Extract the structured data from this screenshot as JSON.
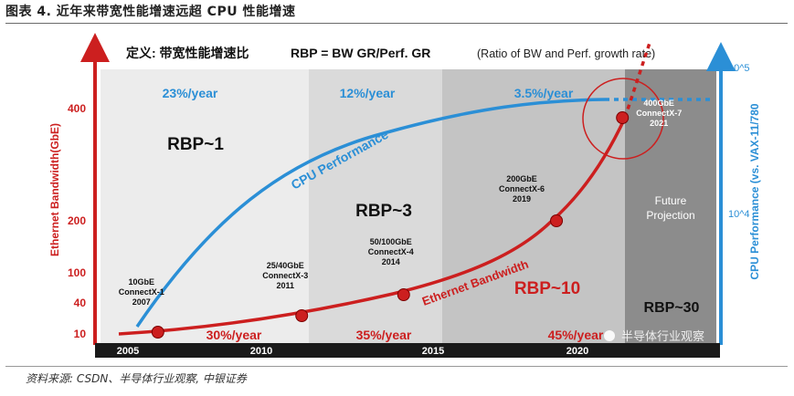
{
  "caption": "图表 4. 近年来带宽性能增速远超 CPU 性能增速",
  "source": "资料来源: CSDN、半导体行业观察, 中银证券",
  "watermark": "半导体行业观察",
  "chart_data": {
    "type": "line",
    "title": "定义: 带宽性能增速比 RBP = BW GR/Perf. GR (Ratio of BW and Perf. growth rate)",
    "title_parts": {
      "cn": "定义: 带宽性能增速比",
      "formula": "RBP = BW GR/Perf. GR",
      "note": "(Ratio of BW and Perf. growth rate)"
    },
    "ylabel_left": "Ethernet Bandwidth(GbE)",
    "ylabel_right": "CPU Performance (vs. VAX-11/780",
    "yticks_left": [
      "400",
      "200",
      "100",
      "40",
      "10"
    ],
    "yticks_right": [
      "10^5",
      "10^4"
    ],
    "xticks": [
      "2005",
      "2010",
      "2015",
      "2020"
    ],
    "eras": [
      {
        "growth_bw": "30%/year",
        "growth_cpu": "23%/year",
        "rbp": "RBP~1"
      },
      {
        "growth_bw": "35%/year",
        "growth_cpu": "12%/year",
        "rbp": "RBP~3"
      },
      {
        "growth_bw": "45%/year",
        "growth_cpu": "3.5%/year",
        "rbp": "RBP~10"
      },
      {
        "label": "Future Projection",
        "rbp": "RBP~30"
      }
    ],
    "colors": {
      "bandwidth": "#cc1f1f",
      "cpu": "#2b8fd6",
      "era1": "#ededed",
      "era2": "#dadada",
      "era3": "#c2c2c2",
      "era4": "#8a8a8a"
    },
    "series": [
      {
        "name": "Ethernet Bandwidth",
        "color": "#cc1f1f",
        "points": [
          {
            "x": 2006,
            "label": [
              "10GbE",
              "ConnectX-1",
              "2007"
            ]
          },
          {
            "x": 2010.8,
            "label": [
              "25/40GbE",
              "ConnectX-3",
              "2011"
            ]
          },
          {
            "x": 2014.2,
            "label": [
              "50/100GbE",
              "ConnectX-4",
              "2014"
            ]
          },
          {
            "x": 2019.3,
            "label": [
              "200GbE",
              "ConnectX-6",
              "2019"
            ]
          },
          {
            "x": 2021.5,
            "label": [
              "400GbE",
              "ConnectX-7",
              "2021"
            ]
          }
        ]
      },
      {
        "name": "CPU Performance",
        "color": "#2b8fd6"
      }
    ]
  }
}
